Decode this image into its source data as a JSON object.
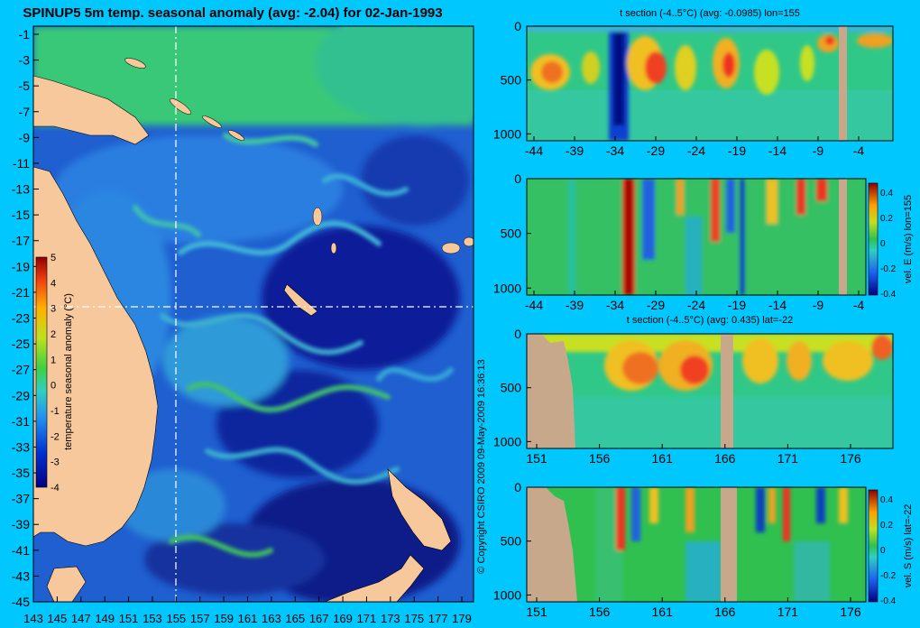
{
  "colors": {
    "background": "#00c8ff",
    "land": "#f7c89b",
    "section_land": "#c8a88a",
    "ocean_deep": "#0a1a8a",
    "ocean_mid": "#1f5fd0",
    "ocean_light": "#35b4d8",
    "anomaly_green": "#30c060",
    "warm": "#f0b020",
    "hot": "#e03010"
  },
  "map": {
    "title": "SPINUP5 5m temp. seasonal anomaly (avg: -2.04) for 02-Jan-1993",
    "x_ticks": [
      "143",
      "145",
      "147",
      "149",
      "151",
      "153",
      "155",
      "157",
      "159",
      "161",
      "163",
      "165",
      "167",
      "169",
      "171",
      "173",
      "175",
      "177",
      "179"
    ],
    "y_ticks": [
      "-1",
      "-3",
      "-5",
      "-7",
      "-9",
      "-11",
      "-13",
      "-15",
      "-17",
      "-19",
      "-21",
      "-23",
      "-25",
      "-27",
      "-29",
      "-31",
      "-33",
      "-35",
      "-37",
      "-39",
      "-41",
      "-43",
      "-45"
    ],
    "colorbar_label": "temperature seasonal anomaly (°C)",
    "colorbar_ticks": [
      "5",
      "4",
      "3",
      "2",
      "1",
      "0",
      "-1",
      "-2",
      "-3",
      "-4"
    ],
    "copyright": "© Copyright CSIRO 2009  09-May-2009 16:36:13"
  },
  "panels": [
    {
      "title": "t section (-4..5°C) (avg: -0.0985) lon=155",
      "x_ticks": [
        "-44",
        "-39",
        "-34",
        "-29",
        "-24",
        "-19",
        "-14",
        "-9",
        "-4"
      ],
      "y_ticks": [
        "0",
        "500",
        "1000"
      ]
    },
    {
      "title": "",
      "x_ticks": [
        "-44",
        "-39",
        "-34",
        "-29",
        "-24",
        "-19",
        "-14",
        "-9",
        "-4"
      ],
      "y_ticks": [
        "0",
        "500",
        "1000"
      ],
      "cbar_label": "vel. E (m/s) lon=155",
      "cbar_ticks": [
        "0.4",
        "0.2",
        "0",
        "-0.2",
        "-0.4"
      ]
    },
    {
      "title": "t section (-4..5°C) (avg: 0.435) lat=-22",
      "x_ticks": [
        "151",
        "156",
        "161",
        "166",
        "171",
        "176"
      ],
      "y_ticks": [
        "0",
        "500",
        "1000"
      ]
    },
    {
      "title": "",
      "x_ticks": [
        "151",
        "156",
        "161",
        "166",
        "171",
        "176"
      ],
      "y_ticks": [
        "0",
        "500",
        "1000"
      ],
      "cbar_label": "vel. S (m/s) lat=-22",
      "cbar_ticks": [
        "0.4",
        "0.2",
        "0",
        "-0.2",
        "-0.4"
      ]
    }
  ],
  "chart_data": [
    {
      "type": "heatmap",
      "title": "SPINUP5 5m temp. seasonal anomaly (avg: -2.04) for 02-Jan-1993",
      "xlabel": "",
      "ylabel": "",
      "xlim": [
        143,
        180
      ],
      "ylim": [
        -45,
        0
      ],
      "colorbar": {
        "label": "temperature seasonal anomaly (°C)",
        "range": [
          -4,
          5
        ]
      },
      "average": -2.04,
      "grid": false
    },
    {
      "type": "heatmap",
      "title": "t section (-4..5°C) (avg: -0.0985) lon=155",
      "xlim": [
        -45,
        -1
      ],
      "ylim": [
        1050,
        0
      ],
      "average": -0.0985,
      "colorbar": {
        "range": [
          -4,
          5
        ]
      }
    },
    {
      "type": "heatmap",
      "title": "",
      "xlim": [
        -45,
        -1
      ],
      "ylim": [
        1050,
        0
      ],
      "colorbar": {
        "label": "vel. E (m/s) lon=155",
        "range": [
          -0.4,
          0.5
        ]
      }
    },
    {
      "type": "heatmap",
      "title": "t section (-4..5°C) (avg: 0.435) lat=-22",
      "xlim": [
        149,
        180
      ],
      "ylim": [
        1050,
        0
      ],
      "average": 0.435,
      "colorbar": {
        "range": [
          -4,
          5
        ]
      }
    },
    {
      "type": "heatmap",
      "title": "",
      "xlim": [
        149,
        180
      ],
      "ylim": [
        1050,
        0
      ],
      "colorbar": {
        "label": "vel. S (m/s) lat=-22",
        "range": [
          -0.4,
          0.5
        ]
      }
    }
  ]
}
